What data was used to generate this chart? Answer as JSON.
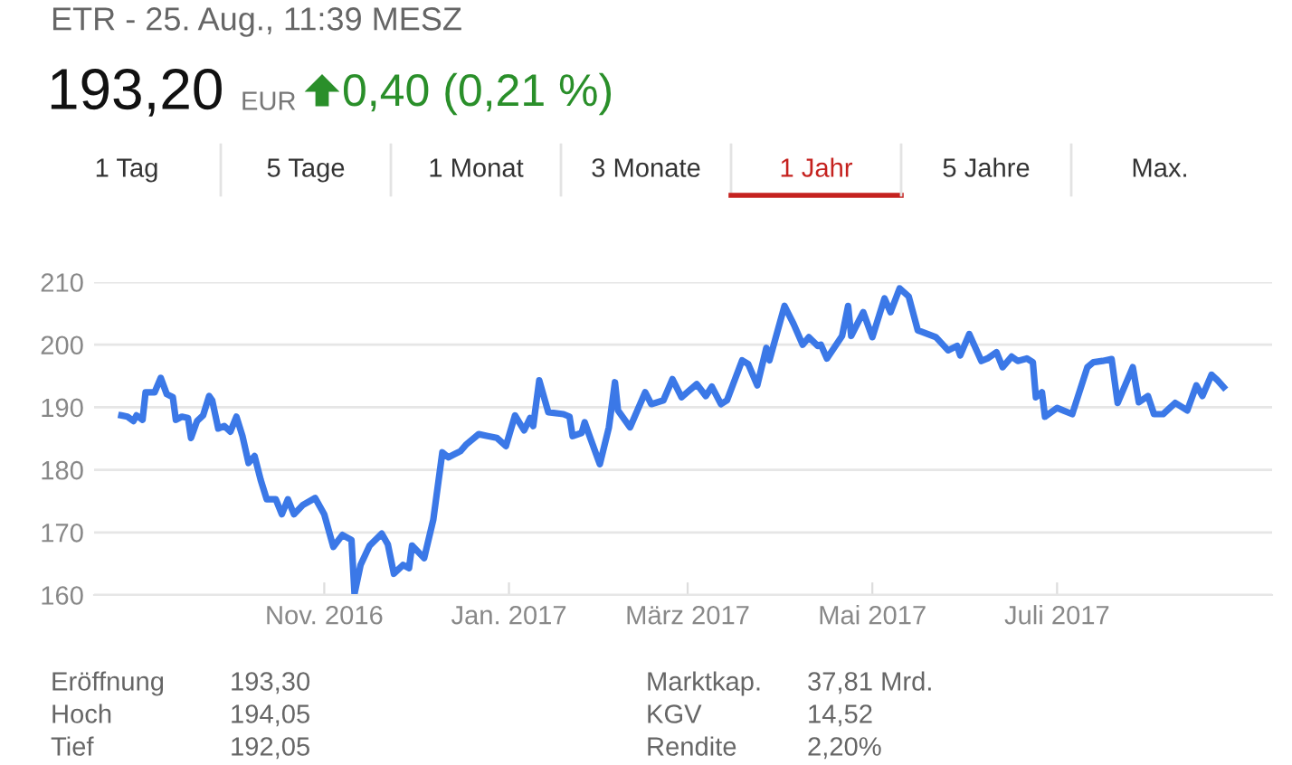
{
  "chart_data": {
    "type": "line",
    "title": "ETR - 25. Aug., 11:39 MESZ",
    "annotations": [
      "193,20",
      "EUR",
      "0,40 (0,21 %)",
      "1 Tag",
      "5 Tage",
      "1 Monat",
      "3 Monate",
      "1 Jahr",
      "5 Jahre",
      "Max.",
      "Eröffnung",
      "193,30",
      "Hoch",
      "194,05",
      "Tief",
      "192,05",
      "Marktkap.",
      "37,81 Mrd.",
      "KGV",
      "14,52",
      "Rendite",
      "2,20%"
    ],
    "x": [
      "2016-08-26",
      "2016-08-28",
      "2016-08-30",
      "2016-08-31",
      "2016-09-02",
      "2016-09-03",
      "2016-09-06",
      "2016-09-08",
      "2016-09-10",
      "2016-09-12",
      "2016-09-13",
      "2016-09-15",
      "2016-09-17",
      "2016-09-18",
      "2016-09-20",
      "2016-09-22",
      "2016-09-24",
      "2016-09-25",
      "2016-09-27",
      "2016-09-29",
      "2016-10-01",
      "2016-10-03",
      "2016-10-05",
      "2016-10-07",
      "2016-10-09",
      "2016-10-11",
      "2016-10-13",
      "2016-10-16",
      "2016-10-18",
      "2016-10-20",
      "2016-10-22",
      "2016-10-25",
      "2016-10-29",
      "2016-11-01",
      "2016-11-04",
      "2016-11-07",
      "2016-11-10",
      "2016-11-11",
      "2016-11-13",
      "2016-11-16",
      "2016-11-20",
      "2016-11-22",
      "2016-11-24",
      "2016-11-27",
      "2016-11-29",
      "2016-11-30",
      "2016-12-04",
      "2016-12-07",
      "2016-12-10",
      "2016-12-12",
      "2016-12-14",
      "2016-12-16",
      "2016-12-18",
      "2016-12-22",
      "2016-12-25",
      "2016-12-28",
      "2016-12-31",
      "2017-01-03",
      "2017-01-06",
      "2017-01-08",
      "2017-01-09",
      "2017-01-11",
      "2017-01-14",
      "2017-01-19",
      "2017-01-21",
      "2017-01-22",
      "2017-01-25",
      "2017-01-26",
      "2017-01-28",
      "2017-01-31",
      "2017-02-03",
      "2017-02-05",
      "2017-02-06",
      "2017-02-10",
      "2017-02-15",
      "2017-02-17",
      "2017-02-21",
      "2017-02-24",
      "2017-02-27",
      "2017-03-04",
      "2017-03-07",
      "2017-03-09",
      "2017-03-12",
      "2017-03-14",
      "2017-03-19",
      "2017-03-21",
      "2017-03-24",
      "2017-03-27",
      "2017-03-28",
      "2017-04-02",
      "2017-04-05",
      "2017-04-08",
      "2017-04-10",
      "2017-04-13",
      "2017-04-14",
      "2017-04-16",
      "2017-04-21",
      "2017-04-23",
      "2017-04-24",
      "2017-04-28",
      "2017-05-01",
      "2017-05-05",
      "2017-05-07",
      "2017-05-10",
      "2017-05-13",
      "2017-05-16",
      "2017-05-22",
      "2017-05-26",
      "2017-05-29",
      "2017-05-30",
      "2017-06-02",
      "2017-06-06",
      "2017-06-08",
      "2017-06-11",
      "2017-06-13",
      "2017-06-16",
      "2017-06-18",
      "2017-06-21",
      "2017-06-23",
      "2017-06-24",
      "2017-06-26",
      "2017-06-27",
      "2017-07-01",
      "2017-07-03",
      "2017-07-06",
      "2017-07-11",
      "2017-07-13",
      "2017-07-16",
      "2017-07-19",
      "2017-07-21",
      "2017-07-26",
      "2017-07-28",
      "2017-07-31",
      "2017-08-02",
      "2017-08-05",
      "2017-08-09",
      "2017-08-13",
      "2017-08-16",
      "2017-08-18",
      "2017-08-21",
      "2017-08-23",
      "2017-08-25"
    ],
    "series": [
      {
        "color": "#3b78e7",
        "values": [
          188.7,
          188.5,
          187.8,
          188.7,
          188.0,
          192.4,
          192.4,
          194.7,
          192.1,
          191.6,
          188.0,
          188.5,
          188.3,
          185.1,
          187.8,
          188.7,
          191.8,
          191.1,
          186.6,
          187.0,
          186.1,
          188.5,
          185.4,
          181.1,
          182.2,
          178.4,
          175.3,
          175.3,
          172.9,
          175.3,
          172.9,
          174.4,
          175.5,
          172.9,
          167.7,
          169.6,
          168.8,
          160.2,
          164.8,
          167.9,
          169.8,
          168.1,
          163.4,
          164.8,
          164.3,
          167.9,
          165.9,
          172.0,
          182.8,
          182.0,
          182.5,
          183.0,
          184.1,
          185.7,
          185.4,
          185.1,
          183.8,
          188.7,
          186.3,
          188.3,
          187.0,
          194.3,
          189.2,
          188.9,
          188.5,
          185.4,
          185.9,
          187.6,
          184.9,
          180.9,
          186.8,
          194.0,
          189.5,
          186.8,
          192.4,
          190.5,
          191.1,
          194.5,
          191.6,
          193.7,
          191.8,
          193.3,
          190.5,
          191.1,
          197.5,
          196.9,
          193.5,
          199.5,
          197.5,
          206.2,
          203.3,
          200.0,
          201.2,
          199.8,
          200.0,
          197.8,
          201.4,
          206.2,
          201.4,
          205.2,
          201.2,
          207.4,
          205.2,
          209.0,
          207.7,
          202.3,
          201.2,
          199.1,
          199.8,
          198.3,
          201.7,
          197.4,
          197.8,
          198.8,
          196.4,
          198.1,
          197.4,
          197.8,
          197.2,
          191.6,
          192.4,
          188.5,
          189.9,
          189.5,
          188.9,
          196.4,
          197.2,
          197.4,
          197.7,
          190.7,
          196.4,
          190.8,
          191.8,
          188.9,
          188.9,
          190.7,
          189.5,
          193.5,
          191.8,
          195.2,
          194.3,
          193.2
        ]
      }
    ],
    "xlim": [
      "2016-08-17",
      "2017-09-10"
    ],
    "xticks": [
      {
        "value": "2016-11-01",
        "label": "Nov. 2016"
      },
      {
        "value": "2017-01-01",
        "label": "Jan. 2017"
      },
      {
        "value": "2017-03-01",
        "label": "März 2017"
      },
      {
        "value": "2017-05-01",
        "label": "Mai 2017"
      },
      {
        "value": "2017-07-01",
        "label": "Juli 2017"
      }
    ],
    "ylim": [
      160,
      210
    ],
    "yticks": [
      160,
      170,
      180,
      190,
      200,
      210
    ],
    "grid": "y",
    "marker": "none",
    "line_style": "solid"
  }
}
